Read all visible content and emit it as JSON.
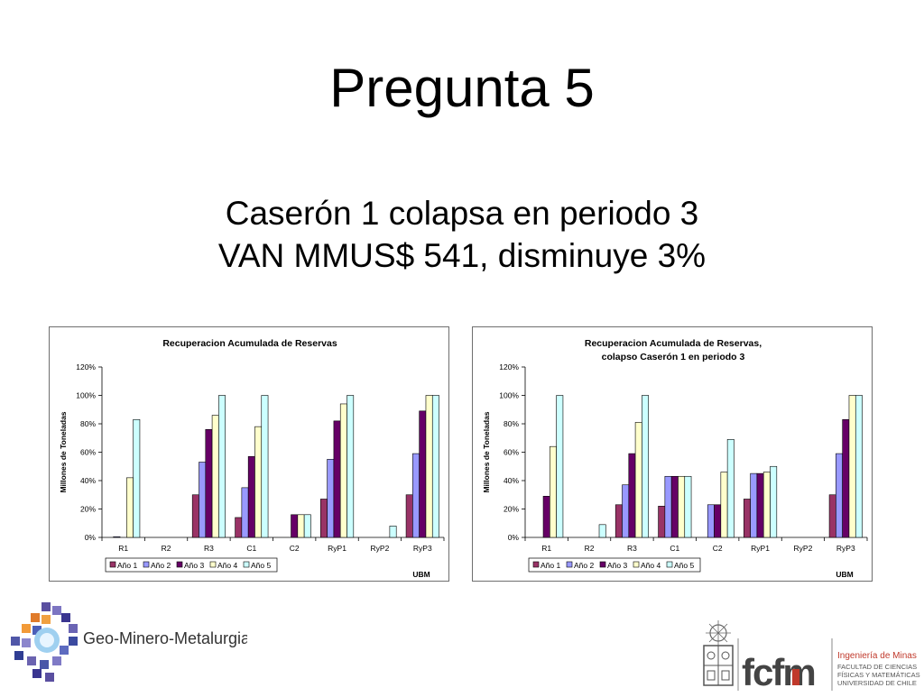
{
  "slide": {
    "title": "Pregunta 5",
    "subtitle_line1": "Caserón 1 colapsa en periodo 3",
    "subtitle_line2": "VAN MMUS$ 541, disminuye 3%"
  },
  "colors": {
    "series": [
      "#993366",
      "#9999ff",
      "#660066",
      "#ffffcc",
      "#ccffff"
    ]
  },
  "chart_data": [
    {
      "type": "bar",
      "title": "Recuperacion Acumulada de Reservas",
      "ylabel": "Millones de Toneladas",
      "xlabel": "",
      "note": "UBM",
      "ylim": [
        0,
        120
      ],
      "yticks": [
        "0%",
        "20%",
        "40%",
        "60%",
        "80%",
        "100%",
        "120%"
      ],
      "legend_position": "bottom",
      "categories": [
        "R1",
        "R2",
        "R3",
        "C1",
        "C2",
        "RyP1",
        "RyP2",
        "RyP3"
      ],
      "series": [
        {
          "name": "Año 1",
          "values": [
            0,
            0,
            30,
            14,
            0,
            27,
            0,
            30
          ]
        },
        {
          "name": "Año 2",
          "values": [
            0.5,
            0,
            53,
            35,
            0,
            55,
            0,
            59
          ]
        },
        {
          "name": "Año 3",
          "values": [
            0,
            0,
            76,
            57,
            16,
            82,
            0,
            89
          ]
        },
        {
          "name": "Año 4",
          "values": [
            42,
            0,
            86,
            78,
            16,
            94,
            0,
            100
          ]
        },
        {
          "name": "Año 5",
          "values": [
            83,
            0,
            100,
            100,
            16,
            100,
            8,
            100
          ]
        }
      ]
    },
    {
      "type": "bar",
      "title": "Recuperacion Acumulada de Reservas,",
      "title_line2": "colapso Caserón 1 en periodo 3",
      "ylabel": "Millones de Toneladas",
      "xlabel": "",
      "note": "UBM",
      "ylim": [
        0,
        120
      ],
      "yticks": [
        "0%",
        "20%",
        "40%",
        "60%",
        "80%",
        "100%",
        "120%"
      ],
      "legend_position": "bottom",
      "categories": [
        "R1",
        "R2",
        "R3",
        "C1",
        "C2",
        "RyP1",
        "RyP2",
        "RyP3"
      ],
      "series": [
        {
          "name": "Año 1",
          "values": [
            0,
            0,
            23,
            22,
            0,
            27,
            0,
            30
          ]
        },
        {
          "name": "Año 2",
          "values": [
            0,
            0,
            37,
            43,
            23,
            45,
            0,
            59
          ]
        },
        {
          "name": "Año 3",
          "values": [
            29,
            0,
            59,
            43,
            23,
            45,
            0,
            83
          ]
        },
        {
          "name": "Año 4",
          "values": [
            64,
            0,
            81,
            43,
            46,
            46,
            0,
            100
          ]
        },
        {
          "name": "Año 5",
          "values": [
            100,
            9,
            100,
            43,
            69,
            50,
            0,
            100
          ]
        }
      ]
    }
  ],
  "logos": {
    "left_text": "Geo-Minero-Metalurgia",
    "right_mark": "fcfm",
    "right_line1": "Ingeniería de Minas",
    "right_line2": "FACULTAD DE CIENCIAS",
    "right_line3": "FÍSICAS Y MATEMÁTICAS",
    "right_line4": "UNIVERSIDAD DE CHILE"
  }
}
